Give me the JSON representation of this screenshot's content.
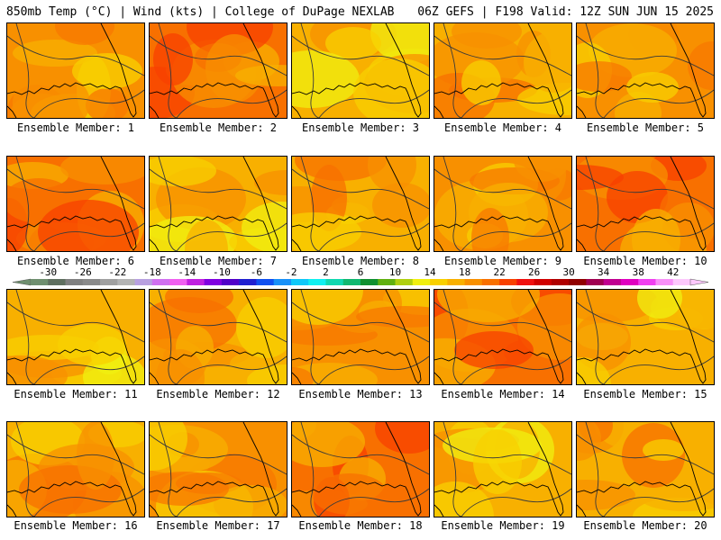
{
  "header": {
    "title_left": "850mb Temp (°C) | Wind (kts) | College of DuPage NEXLAB",
    "title_right": "06Z GEFS | F198 Valid: 12Z SUN JUN 15 2025"
  },
  "panels": [
    {
      "label": "Ensemble Member: 1"
    },
    {
      "label": "Ensemble Member: 2"
    },
    {
      "label": "Ensemble Member: 3"
    },
    {
      "label": "Ensemble Member: 4"
    },
    {
      "label": "Ensemble Member: 5"
    },
    {
      "label": "Ensemble Member: 6"
    },
    {
      "label": "Ensemble Member: 7"
    },
    {
      "label": "Ensemble Member: 8"
    },
    {
      "label": "Ensemble Member: 9"
    },
    {
      "label": "Ensemble Member: 10"
    },
    {
      "label": "Ensemble Member: 11"
    },
    {
      "label": "Ensemble Member: 12"
    },
    {
      "label": "Ensemble Member: 13"
    },
    {
      "label": "Ensemble Member: 14"
    },
    {
      "label": "Ensemble Member: 15"
    },
    {
      "label": "Ensemble Member: 16"
    },
    {
      "label": "Ensemble Member: 17"
    },
    {
      "label": "Ensemble Member: 18"
    },
    {
      "label": "Ensemble Member: 19"
    },
    {
      "label": "Ensemble Member: 20"
    }
  ],
  "colorbar": {
    "labels": [
      "-30",
      "-26",
      "-22",
      "-18",
      "-14",
      "-10",
      "-6",
      "-2",
      "2",
      "6",
      "10",
      "14",
      "18",
      "22",
      "26",
      "30",
      "34",
      "38",
      "42"
    ],
    "colors": [
      "#6f8f6f",
      "#5f6f5f",
      "#808080",
      "#8a8a8a",
      "#a0a0a0",
      "#b4b4b4",
      "#b8a0e0",
      "#d070f0",
      "#f060f0",
      "#c020e0",
      "#8000e0",
      "#5000c8",
      "#2020d0",
      "#1050f0",
      "#1890f8",
      "#10c8f8",
      "#10f0f0",
      "#10d8b0",
      "#10b870",
      "#109030",
      "#60b010",
      "#b0d010",
      "#f0f010",
      "#f8d000",
      "#f8b000",
      "#f89000",
      "#f87000",
      "#f84000",
      "#f01010",
      "#d00000",
      "#b00000",
      "#900000",
      "#a00050",
      "#c00090",
      "#e000c0",
      "#f040f0",
      "#f890f8",
      "#fcc8fc"
    ]
  }
}
